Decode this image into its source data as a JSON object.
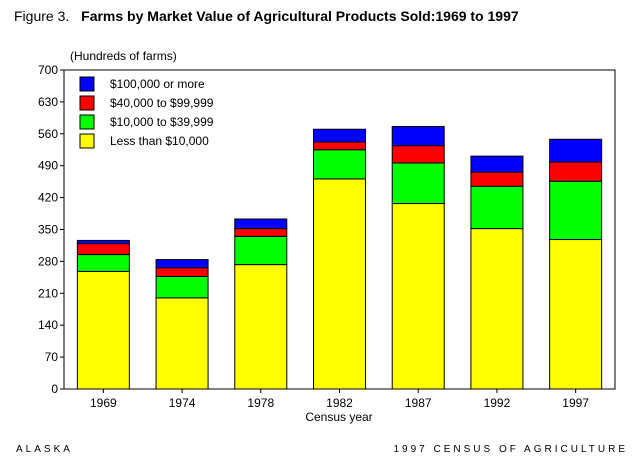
{
  "header": {
    "figure_label": "Figure 3.",
    "title": "Farms by Market Value of Agricultural Products Sold:1969 to 1997"
  },
  "footer": {
    "left": "ALASKA",
    "right": "1997 CENSUS OF AGRICULTURE"
  },
  "chart_data": {
    "type": "bar",
    "stacked": true,
    "ylabel": "(Hundreds of farms)",
    "xlabel": "Census year",
    "ylim": [
      0,
      700
    ],
    "yticks": [
      0,
      70,
      140,
      210,
      280,
      350,
      420,
      490,
      560,
      630,
      700
    ],
    "categories": [
      "1969",
      "1974",
      "1978",
      "1982",
      "1987",
      "1992",
      "1997"
    ],
    "series": [
      {
        "name": "Less than $10,000",
        "color": "#ffff00",
        "values": [
          258,
          200,
          273,
          461,
          407,
          352,
          328
        ]
      },
      {
        "name": "$10,000 to $39,999",
        "color": "#00ff00",
        "values": [
          37,
          47,
          62,
          64,
          89,
          93,
          128
        ]
      },
      {
        "name": "$40,000 to $99,999",
        "color": "#ff0000",
        "values": [
          24,
          19,
          17,
          17,
          38,
          31,
          42
        ]
      },
      {
        "name": "$100,000 or more",
        "color": "#0000ff",
        "values": [
          7,
          18,
          21,
          28,
          42,
          35,
          50
        ]
      }
    ],
    "legend_order": [
      "$100,000 or more",
      "$40,000 to $99,999",
      "$10,000 to $39,999",
      "Less than $10,000"
    ],
    "legend_position": "top-left",
    "grid": false
  }
}
